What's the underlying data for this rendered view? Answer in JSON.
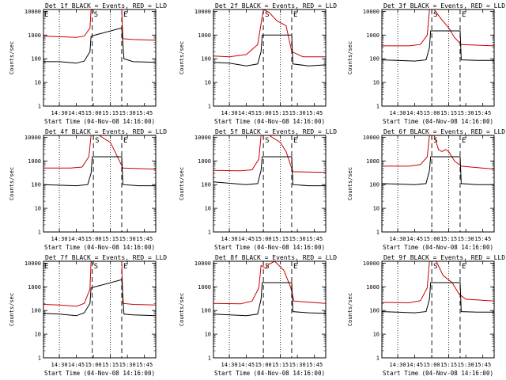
{
  "chart_data": [
    {
      "type": "line",
      "title": "Det 1f BLACK = Events, RED = LLD",
      "xlabel": "Start Time (04-Nov-08 14:16:00)",
      "ylabel": "Counts/sec",
      "y_scale": "log",
      "ylim": [
        1,
        12000
      ],
      "xlim": [
        "14:16",
        "15:55"
      ],
      "x_ticks": [
        "14:30",
        "14:45",
        "15:00",
        "15:15",
        "15:30",
        "15:45"
      ],
      "y_ticks": [
        "1",
        "10",
        "100",
        "1000",
        "10000"
      ],
      "markers": [
        {
          "label": "E",
          "time": "14:16",
          "style": "dotted"
        },
        {
          "label": "S",
          "time": "14:59",
          "style": "dashed"
        },
        {
          "label": "E",
          "time": "15:25",
          "style": "dashed"
        }
      ],
      "dotted_lines": [
        "14:30",
        "15:15"
      ],
      "series": [
        {
          "color": "#cc0000",
          "x": [
            "14:16",
            "14:30",
            "14:45",
            "14:52",
            "14:57",
            "14:58",
            "15:25",
            "15:26",
            "15:35",
            "15:55"
          ],
          "y": [
            900,
            850,
            800,
            900,
            2000,
            12000,
            12000,
            700,
            650,
            600
          ]
        },
        {
          "color": "#000000",
          "x": [
            "14:16",
            "14:30",
            "14:45",
            "14:52",
            "14:57",
            "14:58",
            "15:25",
            "15:27",
            "15:35",
            "15:55"
          ],
          "y": [
            75,
            75,
            65,
            80,
            200,
            900,
            2000,
            100,
            75,
            70
          ]
        }
      ]
    },
    {
      "type": "line",
      "title": "Det 2f BLACK = Events, RED = LLD",
      "xlabel": "Start Time (04-Nov-08 14:16:00)",
      "ylabel": "Counts/sec",
      "y_scale": "log",
      "ylim": [
        1,
        12000
      ],
      "xlim": [
        "14:16",
        "15:55"
      ],
      "x_ticks": [
        "14:30",
        "14:45",
        "15:00",
        "15:15",
        "15:30",
        "15:45"
      ],
      "y_ticks": [
        "1",
        "10",
        "100",
        "1000",
        "10000"
      ],
      "markers": [
        {
          "label": "S",
          "time": "15:00",
          "style": "dashed"
        },
        {
          "label": "E",
          "time": "15:25",
          "style": "dashed"
        }
      ],
      "dotted_lines": [
        "14:30",
        "15:15"
      ],
      "series": [
        {
          "color": "#cc0000",
          "x": [
            "14:16",
            "14:30",
            "14:45",
            "14:55",
            "14:58",
            "15:00",
            "15:05",
            "15:12",
            "15:20",
            "15:25",
            "15:35",
            "15:55"
          ],
          "y": [
            130,
            120,
            150,
            400,
            3000,
            12000,
            9000,
            4000,
            2500,
            200,
            120,
            120
          ]
        },
        {
          "color": "#000000",
          "x": [
            "14:16",
            "14:30",
            "14:45",
            "14:55",
            "14:58",
            "14:59",
            "15:25",
            "15:26",
            "15:40",
            "15:55"
          ],
          "y": [
            70,
            65,
            50,
            60,
            200,
            1000,
            1000,
            60,
            50,
            55
          ]
        }
      ]
    },
    {
      "type": "line",
      "title": "Det 3f BLACK = Events, RED = LLD",
      "xlabel": "Start Time (04-Nov-08 14:16:00)",
      "ylabel": "Counts/sec",
      "y_scale": "log",
      "ylim": [
        1,
        12000
      ],
      "xlim": [
        "14:16",
        "15:55"
      ],
      "x_ticks": [
        "14:30",
        "14:45",
        "15:00",
        "15:15",
        "15:30",
        "15:45"
      ],
      "y_ticks": [
        "1",
        "10",
        "100",
        "1000",
        "10000"
      ],
      "markers": [
        {
          "label": "S",
          "time": "15:00",
          "style": "dashed"
        },
        {
          "label": "E",
          "time": "15:25",
          "style": "dashed"
        }
      ],
      "dotted_lines": [
        "14:30",
        "15:15"
      ],
      "series": [
        {
          "color": "#cc0000",
          "x": [
            "14:16",
            "14:40",
            "14:50",
            "14:56",
            "14:58",
            "15:02",
            "15:08",
            "15:15",
            "15:20",
            "15:26",
            "15:55"
          ],
          "y": [
            350,
            350,
            400,
            1000,
            12000,
            12000,
            5000,
            2000,
            800,
            400,
            350
          ]
        },
        {
          "color": "#000000",
          "x": [
            "14:16",
            "14:45",
            "14:55",
            "14:58",
            "14:59",
            "15:25",
            "15:26",
            "15:40",
            "15:55"
          ],
          "y": [
            90,
            80,
            90,
            300,
            1500,
            1500,
            90,
            85,
            85
          ]
        }
      ]
    },
    {
      "type": "line",
      "title": "Det 4f BLACK = Events, RED = LLD",
      "xlabel": "Start Time (04-Nov-08 14:16:00)",
      "ylabel": "Counts/sec",
      "y_scale": "log",
      "ylim": [
        1,
        12000
      ],
      "xlim": [
        "14:16",
        "15:55"
      ],
      "x_ticks": [
        "14:30",
        "14:45",
        "15:00",
        "15:15",
        "15:30",
        "15:45"
      ],
      "y_ticks": [
        "1",
        "10",
        "100",
        "1000",
        "10000"
      ],
      "markers": [
        {
          "label": "S",
          "time": "15:00",
          "style": "dashed"
        },
        {
          "label": "E",
          "time": "15:25",
          "style": "dashed"
        }
      ],
      "dotted_lines": [
        "14:30",
        "15:15"
      ],
      "series": [
        {
          "color": "#cc0000",
          "x": [
            "14:16",
            "14:40",
            "14:50",
            "14:56",
            "14:58",
            "15:05",
            "15:15",
            "15:20",
            "15:26",
            "15:55"
          ],
          "y": [
            500,
            500,
            550,
            1500,
            12000,
            12000,
            6000,
            2000,
            500,
            450
          ]
        },
        {
          "color": "#000000",
          "x": [
            "14:16",
            "14:45",
            "14:55",
            "14:58",
            "14:59",
            "15:25",
            "15:26",
            "15:40",
            "15:55"
          ],
          "y": [
            100,
            90,
            100,
            300,
            1500,
            1500,
            100,
            90,
            90
          ]
        }
      ]
    },
    {
      "type": "line",
      "title": "Det 5f BLACK = Events, RED = LLD",
      "xlabel": "Start Time (04-Nov-08 14:16:00)",
      "ylabel": "Counts/sec",
      "y_scale": "log",
      "ylim": [
        1,
        12000
      ],
      "xlim": [
        "14:16",
        "15:55"
      ],
      "x_ticks": [
        "14:30",
        "14:45",
        "15:00",
        "15:15",
        "15:30",
        "15:45"
      ],
      "y_ticks": [
        "1",
        "10",
        "100",
        "1000",
        "10000"
      ],
      "markers": [
        {
          "label": "S",
          "time": "15:00",
          "style": "dashed"
        },
        {
          "label": "E",
          "time": "15:25",
          "style": "dashed"
        }
      ],
      "dotted_lines": [
        "14:30",
        "15:15"
      ],
      "series": [
        {
          "color": "#cc0000",
          "x": [
            "14:16",
            "14:40",
            "14:50",
            "14:56",
            "14:58",
            "15:05",
            "15:15",
            "15:20",
            "15:26",
            "15:55"
          ],
          "y": [
            400,
            380,
            420,
            1200,
            12000,
            12000,
            6000,
            2500,
            350,
            330
          ]
        },
        {
          "color": "#000000",
          "x": [
            "14:16",
            "14:45",
            "14:55",
            "14:58",
            "14:59",
            "15:25",
            "15:26",
            "15:40",
            "15:55"
          ],
          "y": [
            130,
            100,
            110,
            400,
            1500,
            1500,
            100,
            90,
            90
          ]
        }
      ]
    },
    {
      "type": "line",
      "title": "Det 6f BLACK = Events, RED = LLD",
      "xlabel": "Start Time (04-Nov-08 14:16:00)",
      "ylabel": "Counts/sec",
      "y_scale": "log",
      "ylim": [
        1,
        12000
      ],
      "xlim": [
        "14:16",
        "15:55"
      ],
      "x_ticks": [
        "14:30",
        "14:45",
        "15:00",
        "15:15",
        "15:30",
        "15:45"
      ],
      "y_ticks": [
        "1",
        "10",
        "100",
        "1000",
        "10000"
      ],
      "markers": [
        {
          "label": "S",
          "time": "15:00",
          "style": "dashed"
        },
        {
          "label": "E",
          "time": "15:25",
          "style": "dashed"
        }
      ],
      "dotted_lines": [
        "14:30",
        "15:15"
      ],
      "series": [
        {
          "color": "#cc0000",
          "x": [
            "14:16",
            "14:40",
            "14:50",
            "14:56",
            "14:58",
            "15:02",
            "15:06",
            "15:09",
            "15:12",
            "15:15",
            "15:20",
            "15:26",
            "15:55"
          ],
          "y": [
            600,
            600,
            700,
            1500,
            12000,
            12000,
            3000,
            2500,
            3000,
            2500,
            1000,
            600,
            450
          ]
        },
        {
          "color": "#000000",
          "x": [
            "14:16",
            "14:45",
            "14:55",
            "14:58",
            "14:59",
            "15:25",
            "15:26",
            "15:40",
            "15:55"
          ],
          "y": [
            110,
            100,
            110,
            400,
            1500,
            1500,
            110,
            100,
            100
          ]
        }
      ]
    },
    {
      "type": "line",
      "title": "Det 7f BLACK = Events, RED = LLD",
      "xlabel": "Start Time (04-Nov-08 14:16:00)",
      "ylabel": "Counts/sec",
      "y_scale": "log",
      "ylim": [
        1,
        12000
      ],
      "xlim": [
        "14:16",
        "15:55"
      ],
      "x_ticks": [
        "14:30",
        "14:45",
        "15:00",
        "15:15",
        "15:30",
        "15:45"
      ],
      "y_ticks": [
        "1",
        "10",
        "100",
        "1000",
        "10000"
      ],
      "markers": [
        {
          "label": "E",
          "time": "14:16",
          "style": "dotted"
        },
        {
          "label": "S",
          "time": "14:59",
          "style": "dashed"
        },
        {
          "label": "E",
          "time": "15:25",
          "style": "dashed"
        }
      ],
      "dotted_lines": [
        "14:30",
        "15:15"
      ],
      "series": [
        {
          "color": "#cc0000",
          "x": [
            "14:16",
            "14:30",
            "14:45",
            "14:52",
            "14:57",
            "14:58",
            "15:25",
            "15:26",
            "15:35",
            "15:55"
          ],
          "y": [
            180,
            170,
            150,
            200,
            800,
            12000,
            12000,
            200,
            180,
            170
          ]
        },
        {
          "color": "#000000",
          "x": [
            "14:16",
            "14:30",
            "14:45",
            "14:52",
            "14:57",
            "14:58",
            "15:25",
            "15:27",
            "15:35",
            "15:55"
          ],
          "y": [
            75,
            70,
            60,
            80,
            200,
            900,
            2000,
            70,
            65,
            60
          ]
        }
      ]
    },
    {
      "type": "line",
      "title": "Det 8f BLACK = Events, RED = LLD",
      "xlabel": "Start Time (04-Nov-08 14:16:00)",
      "ylabel": "Counts/sec",
      "y_scale": "log",
      "ylim": [
        1,
        12000
      ],
      "xlim": [
        "14:16",
        "15:55"
      ],
      "x_ticks": [
        "14:30",
        "14:45",
        "15:00",
        "15:15",
        "15:30",
        "15:45"
      ],
      "y_ticks": [
        "1",
        "10",
        "100",
        "1000",
        "10000"
      ],
      "markers": [
        {
          "label": "S",
          "time": "15:00",
          "style": "dashed"
        },
        {
          "label": "E",
          "time": "15:25",
          "style": "dashed"
        }
      ],
      "dotted_lines": [
        "14:30",
        "15:15"
      ],
      "series": [
        {
          "color": "#cc0000",
          "x": [
            "14:16",
            "14:40",
            "14:50",
            "14:56",
            "14:58",
            "15:02",
            "15:05",
            "15:10",
            "15:18",
            "15:24",
            "15:27",
            "15:55"
          ],
          "y": [
            200,
            190,
            250,
            900,
            8000,
            6000,
            9000,
            12000,
            5000,
            1000,
            250,
            200
          ]
        },
        {
          "color": "#000000",
          "x": [
            "14:16",
            "14:45",
            "14:55",
            "14:58",
            "14:59",
            "15:25",
            "15:26",
            "15:40",
            "15:55"
          ],
          "y": [
            70,
            60,
            70,
            300,
            1500,
            1500,
            90,
            80,
            75
          ]
        }
      ]
    },
    {
      "type": "line",
      "title": "Det 9f BLACK = Events, RED = LLD",
      "xlabel": "Start Time (04-Nov-08 14:16:00)",
      "ylabel": "Counts/sec",
      "y_scale": "log",
      "ylim": [
        1,
        12000
      ],
      "xlim": [
        "14:16",
        "15:55"
      ],
      "x_ticks": [
        "14:30",
        "14:45",
        "15:00",
        "15:15",
        "15:30",
        "15:45"
      ],
      "y_ticks": [
        "1",
        "10",
        "100",
        "1000",
        "10000"
      ],
      "markers": [
        {
          "label": "S",
          "time": "15:00",
          "style": "dashed"
        },
        {
          "label": "E",
          "time": "15:25",
          "style": "dashed"
        }
      ],
      "dotted_lines": [
        "14:30",
        "15:15"
      ],
      "series": [
        {
          "color": "#cc0000",
          "x": [
            "14:16",
            "14:40",
            "14:50",
            "14:56",
            "14:58",
            "15:04",
            "15:10",
            "15:18",
            "15:24",
            "15:30",
            "15:55"
          ],
          "y": [
            220,
            210,
            260,
            900,
            12000,
            12000,
            3000,
            1500,
            500,
            300,
            250
          ]
        },
        {
          "color": "#000000",
          "x": [
            "14:16",
            "14:45",
            "14:55",
            "14:58",
            "14:59",
            "15:25",
            "15:26",
            "15:40",
            "15:55"
          ],
          "y": [
            90,
            80,
            90,
            300,
            1500,
            1500,
            90,
            85,
            85
          ]
        }
      ]
    }
  ]
}
